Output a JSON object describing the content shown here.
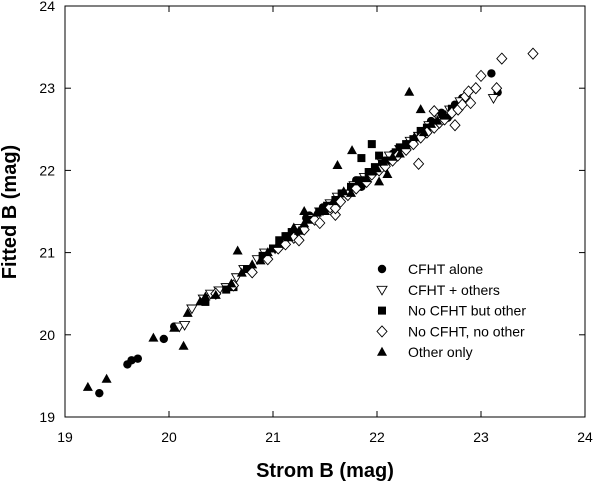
{
  "chart_data": {
    "type": "scatter",
    "xlabel": "Strom B (mag)",
    "ylabel": "Fitted B  (mag)",
    "xlim": [
      19,
      24
    ],
    "ylim": [
      19,
      24
    ],
    "x_ticks": [
      "19",
      "20",
      "21",
      "22",
      "23",
      "24"
    ],
    "y_ticks": [
      "19",
      "20",
      "21",
      "22",
      "23",
      "24"
    ],
    "grid": false,
    "legend_position": "lower-right",
    "series": [
      {
        "name": "CFHT alone",
        "marker": "filled-circle",
        "points": [
          [
            19.33,
            19.29
          ],
          [
            19.6,
            19.64
          ],
          [
            19.64,
            19.69
          ],
          [
            19.7,
            19.71
          ],
          [
            19.95,
            19.95
          ],
          [
            20.05,
            20.1
          ],
          [
            21.32,
            21.42
          ],
          [
            21.35,
            21.45
          ],
          [
            21.48,
            21.55
          ],
          [
            21.5,
            21.52
          ],
          [
            21.8,
            21.88
          ],
          [
            21.85,
            21.8
          ],
          [
            22.05,
            22.1
          ],
          [
            22.15,
            22.2
          ],
          [
            22.3,
            22.33
          ],
          [
            22.45,
            22.48
          ],
          [
            22.52,
            22.6
          ],
          [
            22.62,
            22.7
          ],
          [
            22.68,
            22.64
          ],
          [
            22.75,
            22.8
          ],
          [
            22.82,
            22.88
          ],
          [
            23.1,
            23.18
          ],
          [
            23.16,
            22.95
          ]
        ]
      },
      {
        "name": "CFHT + others",
        "marker": "open-triangle-down",
        "points": [
          [
            20.1,
            20.1
          ],
          [
            20.15,
            20.12
          ],
          [
            20.22,
            20.32
          ],
          [
            20.33,
            20.44
          ],
          [
            20.4,
            20.5
          ],
          [
            20.48,
            20.54
          ],
          [
            20.55,
            20.58
          ],
          [
            20.65,
            20.7
          ],
          [
            20.72,
            20.8
          ],
          [
            20.85,
            20.92
          ],
          [
            20.92,
            21.0
          ],
          [
            21.02,
            21.05
          ],
          [
            21.08,
            21.14
          ],
          [
            21.15,
            21.2
          ],
          [
            21.25,
            21.3
          ],
          [
            21.38,
            21.42
          ],
          [
            21.45,
            21.5
          ],
          [
            21.55,
            21.6
          ],
          [
            21.62,
            21.68
          ],
          [
            21.7,
            21.72
          ],
          [
            21.78,
            21.82
          ],
          [
            21.88,
            21.92
          ],
          [
            21.95,
            21.98
          ],
          [
            22.05,
            22.1
          ],
          [
            22.12,
            22.18
          ],
          [
            22.22,
            22.26
          ],
          [
            22.32,
            22.36
          ],
          [
            22.4,
            22.42
          ],
          [
            22.5,
            22.55
          ],
          [
            22.6,
            22.62
          ],
          [
            22.7,
            22.74
          ],
          [
            22.8,
            22.84
          ],
          [
            23.12,
            22.88
          ]
        ]
      },
      {
        "name": "No CFHT but other",
        "marker": "filled-square",
        "points": [
          [
            20.35,
            20.4
          ],
          [
            20.55,
            20.55
          ],
          [
            20.62,
            20.58
          ],
          [
            20.75,
            20.8
          ],
          [
            20.9,
            20.96
          ],
          [
            21.0,
            21.05
          ],
          [
            21.06,
            21.15
          ],
          [
            21.12,
            21.2
          ],
          [
            21.18,
            21.25
          ],
          [
            21.22,
            21.22
          ],
          [
            21.35,
            21.4
          ],
          [
            21.45,
            21.5
          ],
          [
            21.52,
            21.57
          ],
          [
            21.6,
            21.64
          ],
          [
            21.66,
            21.72
          ],
          [
            21.75,
            21.8
          ],
          [
            21.85,
            21.88
          ],
          [
            21.92,
            21.98
          ],
          [
            21.98,
            22.04
          ],
          [
            22.02,
            22.18
          ],
          [
            22.05,
            22.08
          ],
          [
            22.1,
            22.12
          ],
          [
            22.18,
            22.22
          ],
          [
            22.22,
            22.28
          ],
          [
            22.28,
            22.32
          ],
          [
            22.35,
            22.38
          ],
          [
            22.42,
            22.48
          ],
          [
            22.48,
            22.52
          ],
          [
            22.55,
            22.58
          ],
          [
            22.63,
            22.68
          ],
          [
            22.72,
            22.75
          ],
          [
            21.95,
            22.32
          ],
          [
            21.85,
            22.15
          ]
        ]
      },
      {
        "name": "No CFHT, no other",
        "marker": "open-diamond",
        "points": [
          [
            20.45,
            20.5
          ],
          [
            20.62,
            20.6
          ],
          [
            20.8,
            20.76
          ],
          [
            20.95,
            20.92
          ],
          [
            21.05,
            21.05
          ],
          [
            21.12,
            21.1
          ],
          [
            21.2,
            21.18
          ],
          [
            21.3,
            21.28
          ],
          [
            21.4,
            21.4
          ],
          [
            21.45,
            21.36
          ],
          [
            21.55,
            21.55
          ],
          [
            21.6,
            21.46
          ],
          [
            21.65,
            21.62
          ],
          [
            21.72,
            21.7
          ],
          [
            21.8,
            21.78
          ],
          [
            21.9,
            21.86
          ],
          [
            21.95,
            21.95
          ],
          [
            22.02,
            22.0
          ],
          [
            22.08,
            22.05
          ],
          [
            22.15,
            22.12
          ],
          [
            22.2,
            22.18
          ],
          [
            22.28,
            22.25
          ],
          [
            22.35,
            22.32
          ],
          [
            22.42,
            22.4
          ],
          [
            22.48,
            22.46
          ],
          [
            22.55,
            22.52
          ],
          [
            22.6,
            22.58
          ],
          [
            22.65,
            22.62
          ],
          [
            22.72,
            22.7
          ],
          [
            22.78,
            22.74
          ],
          [
            22.82,
            22.8
          ],
          [
            22.85,
            22.9
          ],
          [
            22.9,
            22.82
          ],
          [
            22.95,
            23.0
          ],
          [
            23.0,
            23.15
          ],
          [
            22.88,
            22.96
          ],
          [
            23.2,
            23.36
          ],
          [
            23.5,
            23.42
          ],
          [
            23.15,
            23.0
          ],
          [
            22.75,
            22.55
          ],
          [
            22.55,
            22.72
          ],
          [
            22.4,
            22.08
          ],
          [
            21.6,
            21.54
          ],
          [
            21.25,
            21.15
          ]
        ]
      },
      {
        "name": "Other only",
        "marker": "filled-triangle-up",
        "points": [
          [
            19.22,
            19.36
          ],
          [
            19.4,
            19.46
          ],
          [
            19.85,
            19.96
          ],
          [
            20.05,
            20.08
          ],
          [
            20.14,
            19.86
          ],
          [
            20.18,
            20.26
          ],
          [
            20.3,
            20.4
          ],
          [
            20.35,
            20.46
          ],
          [
            20.45,
            20.48
          ],
          [
            20.6,
            20.62
          ],
          [
            20.66,
            21.02
          ],
          [
            20.7,
            20.75
          ],
          [
            20.8,
            20.85
          ],
          [
            20.88,
            20.9
          ],
          [
            20.95,
            21.0
          ],
          [
            21.05,
            21.1
          ],
          [
            21.15,
            21.18
          ],
          [
            21.2,
            21.3
          ],
          [
            21.25,
            21.26
          ],
          [
            21.3,
            21.35
          ],
          [
            21.42,
            21.48
          ],
          [
            21.5,
            21.5
          ],
          [
            21.58,
            21.62
          ],
          [
            21.62,
            22.06
          ],
          [
            21.68,
            21.74
          ],
          [
            21.75,
            21.72
          ],
          [
            21.82,
            21.86
          ],
          [
            21.9,
            21.9
          ],
          [
            21.95,
            21.98
          ],
          [
            22.0,
            22.02
          ],
          [
            22.02,
            21.86
          ],
          [
            22.06,
            22.1
          ],
          [
            22.1,
            21.95
          ],
          [
            22.15,
            22.16
          ],
          [
            22.22,
            22.2
          ],
          [
            22.28,
            22.3
          ],
          [
            22.31,
            22.95
          ],
          [
            22.36,
            22.4
          ],
          [
            22.42,
            22.74
          ],
          [
            22.45,
            22.46
          ],
          [
            22.52,
            22.56
          ],
          [
            22.58,
            22.6
          ],
          [
            22.65,
            22.66
          ],
          [
            21.3,
            21.5
          ],
          [
            21.76,
            22.24
          ]
        ]
      }
    ]
  }
}
